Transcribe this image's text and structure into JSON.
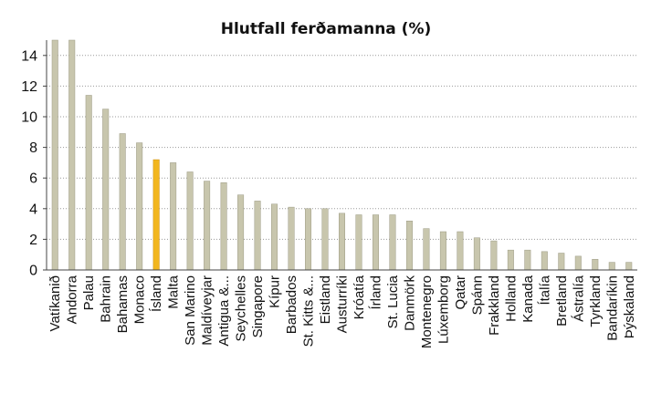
{
  "chart_data": {
    "type": "bar",
    "title": "Hlutfall ferðamanna (%)",
    "xlabel": "",
    "ylabel": "",
    "ylim": [
      0,
      15
    ],
    "yticks": [
      0,
      2,
      4,
      6,
      8,
      10,
      12,
      14
    ],
    "grid": true,
    "legend": "none",
    "categories": [
      "Vatíkanið",
      "Andorra",
      "Palau",
      "Bahrain",
      "Bahamas",
      "Monaco",
      "Ísland",
      "Malta",
      "San Marino",
      "Maldíveyjar",
      "Antigua &...",
      "Seychelles",
      "Singapore",
      "Kípur",
      "Barbados",
      "St. Kitts &...",
      "Eistland",
      "Austurríki",
      "Króatía",
      "Írland",
      "St. Lucia",
      "Danmörk",
      "Montenegro",
      "Lúxemborg",
      "Qatar",
      "Spánn",
      "Frakkland",
      "Holland",
      "Kanada",
      "Ítalía",
      "Bretland",
      "Ástralía",
      "Tyrkland",
      "Bandaríkin",
      "Þýskaland"
    ],
    "values": [
      15.0,
      15.0,
      11.4,
      10.5,
      8.9,
      8.3,
      7.2,
      7.0,
      6.4,
      5.8,
      5.7,
      4.9,
      4.5,
      4.3,
      4.1,
      4.0,
      4.0,
      3.7,
      3.6,
      3.6,
      3.6,
      3.2,
      2.7,
      2.5,
      2.5,
      2.1,
      1.9,
      1.3,
      1.3,
      1.2,
      1.1,
      0.9,
      0.7,
      0.5,
      0.5
    ],
    "highlight_index": 6,
    "colors": {
      "bar": "#c8c6ad",
      "bar_edge": "#9c9a84",
      "highlight": "#f2b61e",
      "highlight_edge": "#c98d10",
      "grid": "#9a9a9a",
      "axis": "#444444"
    }
  }
}
